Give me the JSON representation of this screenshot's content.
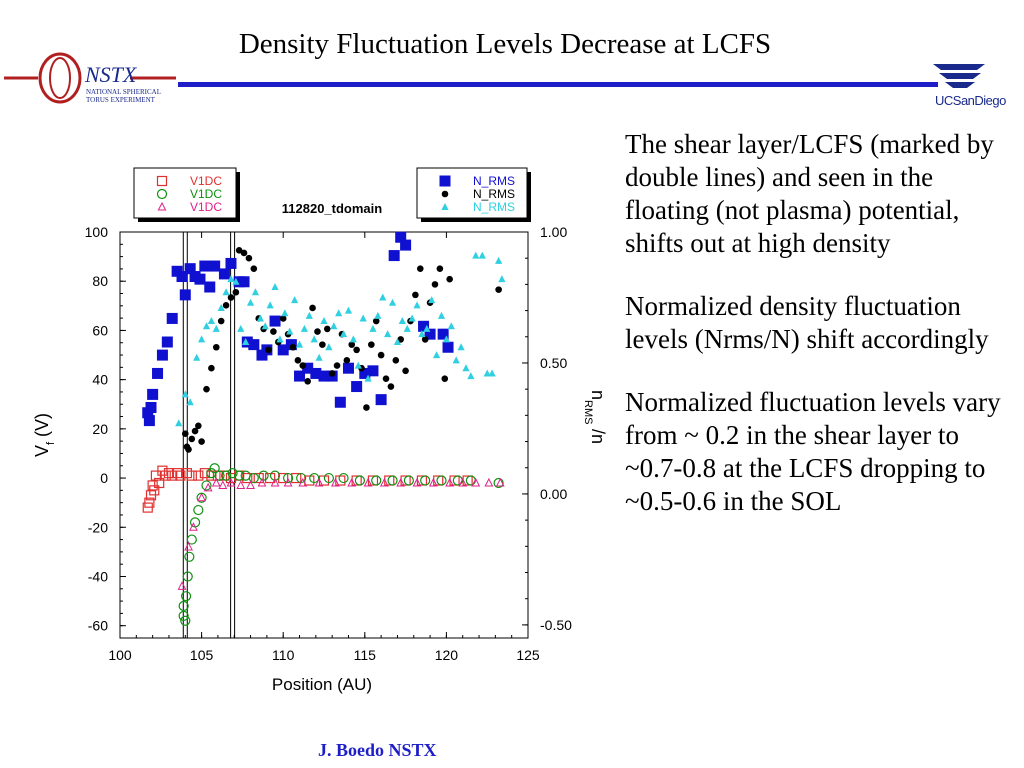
{
  "slide": {
    "title": "Density Fluctuation Levels Decrease at LCFS",
    "footer": "J. Boedo NSTX",
    "logos": {
      "left_text": "NSTX",
      "left_sub": [
        "NATIONAL SPHERICAL",
        "TORUS EXPERIMENT"
      ],
      "right_text": "UCSanDiego"
    },
    "bullets": [
      "The shear layer/LCFS (marked by double lines) and seen in the floating (not plasma) potential, shifts out at high density",
      "Normalized density fluctuation levels (Nrms/N) shift accordingly",
      "Normalized fluctuation levels vary from ~ 0.2 in the shear layer to ~0.7-0.8 at the LCFS dropping to ~0.5-0.6 in the SOL"
    ],
    "colors": {
      "title_rule": "#1e1ec8",
      "footer": "#1e1ec8",
      "nstx_red": "#b02020"
    }
  },
  "chart_data": {
    "type": "scatter",
    "title": "112820_tdomain",
    "xlabel": "Position (AU)",
    "ylabel": "V",
    "ylabel_sub": "f",
    "ylabel_unit": "(V)",
    "y2label": "n",
    "y2label_sub": "RMS",
    "y2label_tail": "/n",
    "xlim": [
      100,
      125
    ],
    "ylim": [
      -65,
      100
    ],
    "y2lim": [
      -0.55,
      1.0
    ],
    "x_ticks": [
      100,
      105,
      110,
      115,
      120,
      125
    ],
    "y_ticks": [
      100,
      80,
      60,
      40,
      20,
      0,
      -20,
      -40,
      -60
    ],
    "y_tick_labels": [
      "100",
      "80",
      "60",
      "40",
      "20",
      "0",
      "-20",
      "-40",
      "-60"
    ],
    "y2_ticks": [
      1.0,
      0.5,
      0.0,
      -0.5
    ],
    "y2_tick_labels": [
      "1.00",
      "0.50",
      "0.00",
      "-0.50"
    ],
    "lcfs_lines": [
      104.0,
      106.9
    ],
    "legend_left": [
      {
        "label": "V1DC",
        "marker": "open-square",
        "color": "#e03030"
      },
      {
        "label": "V1DC",
        "marker": "open-circle",
        "color": "#109010"
      },
      {
        "label": "V1DC",
        "marker": "open-triangle",
        "color": "#e0208a"
      }
    ],
    "legend_right": [
      {
        "label": "N_RMS",
        "marker": "filled-square",
        "color": "#1010d0"
      },
      {
        "label": "N_RMS",
        "marker": "filled-circle",
        "color": "#000000"
      },
      {
        "label": "N_RMS",
        "marker": "filled-triangle",
        "color": "#30d0e0"
      }
    ],
    "series": [
      {
        "name": "V1DC",
        "marker": "open-square",
        "color": "#e03030",
        "axis": "left",
        "points": [
          [
            101.7,
            -12
          ],
          [
            101.8,
            -10
          ],
          [
            101.9,
            -7
          ],
          [
            102.0,
            -3
          ],
          [
            102.1,
            -5
          ],
          [
            102.2,
            1
          ],
          [
            102.4,
            -2
          ],
          [
            102.6,
            3
          ],
          [
            102.8,
            1
          ],
          [
            103.0,
            2
          ],
          [
            103.2,
            1
          ],
          [
            103.5,
            2
          ],
          [
            103.7,
            1
          ],
          [
            104.1,
            2
          ],
          [
            104.4,
            1
          ],
          [
            104.8,
            1
          ],
          [
            105.2,
            2
          ],
          [
            105.6,
            1
          ],
          [
            106.0,
            1
          ],
          [
            106.4,
            1
          ],
          [
            106.8,
            0
          ],
          [
            107.3,
            1
          ],
          [
            107.8,
            0
          ],
          [
            108.5,
            0
          ],
          [
            109.2,
            0
          ],
          [
            110.0,
            0
          ],
          [
            110.8,
            0
          ],
          [
            111.6,
            -1
          ],
          [
            112.5,
            -1
          ],
          [
            113.5,
            -1
          ],
          [
            114.5,
            -1
          ],
          [
            115.5,
            -1
          ],
          [
            116.5,
            -1
          ],
          [
            117.5,
            -1
          ],
          [
            118.5,
            -1
          ],
          [
            119.5,
            -1
          ],
          [
            120.5,
            -1
          ],
          [
            121.3,
            -1
          ]
        ]
      },
      {
        "name": "V1DC",
        "marker": "open-circle",
        "color": "#109010",
        "axis": "left",
        "points": [
          [
            103.9,
            -52
          ],
          [
            103.9,
            -56
          ],
          [
            104.0,
            -58
          ],
          [
            104.05,
            -48
          ],
          [
            104.15,
            -40
          ],
          [
            104.25,
            -32
          ],
          [
            104.4,
            -25
          ],
          [
            104.6,
            -18
          ],
          [
            104.8,
            -13
          ],
          [
            105.0,
            -8
          ],
          [
            105.3,
            -3
          ],
          [
            105.6,
            2
          ],
          [
            105.8,
            4
          ],
          [
            106.1,
            1
          ],
          [
            106.5,
            1
          ],
          [
            106.9,
            2
          ],
          [
            107.3,
            1
          ],
          [
            107.7,
            1
          ],
          [
            108.2,
            0
          ],
          [
            108.8,
            1
          ],
          [
            109.5,
            1
          ],
          [
            110.3,
            0
          ],
          [
            111.1,
            0
          ],
          [
            111.9,
            0
          ],
          [
            112.8,
            0
          ],
          [
            113.7,
            0
          ],
          [
            114.7,
            -1
          ],
          [
            115.7,
            -1
          ],
          [
            116.7,
            -1
          ],
          [
            117.7,
            -1
          ],
          [
            118.7,
            -1
          ],
          [
            119.7,
            -1
          ],
          [
            120.7,
            -1
          ],
          [
            121.5,
            -1
          ],
          [
            123.2,
            -2
          ]
        ]
      },
      {
        "name": "V1DC",
        "marker": "open-triangle",
        "color": "#e0208a",
        "axis": "left",
        "points": [
          [
            103.8,
            -44
          ],
          [
            104.2,
            -28
          ],
          [
            104.5,
            -20
          ],
          [
            105.0,
            -8
          ],
          [
            105.4,
            -4
          ],
          [
            105.9,
            -2
          ],
          [
            106.3,
            -3
          ],
          [
            106.8,
            -2
          ],
          [
            107.4,
            -3
          ],
          [
            108.0,
            -3
          ],
          [
            108.7,
            -2
          ],
          [
            109.5,
            -2
          ],
          [
            110.3,
            -2
          ],
          [
            111.2,
            -2
          ],
          [
            112.2,
            -2
          ],
          [
            113.2,
            -2
          ],
          [
            114.2,
            -2
          ],
          [
            115.2,
            -2
          ],
          [
            116.2,
            -2
          ],
          [
            117.2,
            -2
          ],
          [
            118.2,
            -2
          ],
          [
            119.2,
            -2
          ],
          [
            120.2,
            -2
          ],
          [
            121.0,
            -2
          ],
          [
            121.8,
            -2
          ],
          [
            122.6,
            -2
          ],
          [
            123.3,
            -2
          ]
        ]
      },
      {
        "name": "N_RMS",
        "marker": "filled-square",
        "color": "#1010d0",
        "axis": "right",
        "points": [
          [
            101.7,
            0.31
          ],
          [
            101.8,
            0.28
          ],
          [
            101.9,
            0.33
          ],
          [
            102.0,
            0.38
          ],
          [
            102.3,
            0.46
          ],
          [
            102.6,
            0.53
          ],
          [
            102.9,
            0.58
          ],
          [
            103.2,
            0.67
          ],
          [
            103.5,
            0.85
          ],
          [
            103.8,
            0.83
          ],
          [
            104.0,
            0.76
          ],
          [
            104.3,
            0.86
          ],
          [
            104.6,
            0.83
          ],
          [
            104.9,
            0.82
          ],
          [
            105.2,
            0.87
          ],
          [
            105.5,
            0.79
          ],
          [
            105.8,
            0.87
          ],
          [
            106.4,
            0.84
          ],
          [
            106.8,
            0.88
          ],
          [
            107.3,
            0.81
          ],
          [
            107.6,
            0.81
          ],
          [
            107.8,
            0.58
          ],
          [
            108.2,
            0.57
          ],
          [
            108.7,
            0.53
          ],
          [
            109.0,
            0.55
          ],
          [
            109.5,
            0.66
          ],
          [
            110.0,
            0.55
          ],
          [
            110.5,
            0.57
          ],
          [
            111.0,
            0.45
          ],
          [
            111.5,
            0.48
          ],
          [
            112.0,
            0.46
          ],
          [
            112.5,
            0.45
          ],
          [
            113.0,
            0.45
          ],
          [
            113.5,
            0.35
          ],
          [
            114.0,
            0.48
          ],
          [
            114.5,
            0.41
          ],
          [
            115.0,
            0.46
          ],
          [
            115.5,
            0.47
          ],
          [
            116.0,
            0.36
          ],
          [
            116.8,
            0.91
          ],
          [
            117.2,
            0.98
          ],
          [
            117.5,
            0.95
          ],
          [
            118.6,
            0.64
          ],
          [
            119.0,
            0.61
          ],
          [
            119.8,
            0.61
          ],
          [
            120.1,
            0.56
          ]
        ]
      },
      {
        "name": "N_RMS",
        "marker": "filled-circle",
        "color": "#000000",
        "axis": "right",
        "points": [
          [
            104.0,
            0.23
          ],
          [
            104.1,
            0.18
          ],
          [
            104.2,
            0.17
          ],
          [
            104.4,
            0.21
          ],
          [
            104.6,
            0.24
          ],
          [
            104.8,
            0.26
          ],
          [
            105.0,
            0.2
          ],
          [
            105.3,
            0.4
          ],
          [
            105.6,
            0.48
          ],
          [
            105.9,
            0.56
          ],
          [
            106.2,
            0.66
          ],
          [
            106.5,
            0.72
          ],
          [
            106.8,
            0.75
          ],
          [
            107.1,
            0.77
          ],
          [
            107.3,
            0.93
          ],
          [
            107.6,
            0.92
          ],
          [
            107.9,
            0.9
          ],
          [
            108.2,
            0.86
          ],
          [
            108.5,
            0.67
          ],
          [
            108.8,
            0.63
          ],
          [
            109.1,
            0.55
          ],
          [
            109.4,
            0.62
          ],
          [
            109.7,
            0.58
          ],
          [
            110.0,
            0.67
          ],
          [
            110.3,
            0.61
          ],
          [
            110.6,
            0.56
          ],
          [
            110.9,
            0.51
          ],
          [
            111.2,
            0.49
          ],
          [
            111.5,
            0.43
          ],
          [
            111.8,
            0.71
          ],
          [
            112.1,
            0.62
          ],
          [
            112.4,
            0.57
          ],
          [
            112.7,
            0.63
          ],
          [
            113.0,
            0.46
          ],
          [
            113.3,
            0.49
          ],
          [
            113.6,
            0.61
          ],
          [
            113.9,
            0.51
          ],
          [
            114.2,
            0.57
          ],
          [
            114.5,
            0.55
          ],
          [
            114.8,
            0.48
          ],
          [
            115.1,
            0.33
          ],
          [
            115.4,
            0.57
          ],
          [
            115.7,
            0.66
          ],
          [
            116.0,
            0.53
          ],
          [
            116.3,
            0.44
          ],
          [
            116.6,
            0.41
          ],
          [
            116.9,
            0.51
          ],
          [
            117.2,
            0.59
          ],
          [
            117.5,
            0.47
          ],
          [
            117.8,
            0.66
          ],
          [
            118.1,
            0.76
          ],
          [
            118.4,
            0.86
          ],
          [
            118.7,
            0.59
          ],
          [
            119.0,
            0.73
          ],
          [
            119.3,
            0.8
          ],
          [
            119.6,
            0.86
          ],
          [
            119.9,
            0.44
          ],
          [
            120.2,
            0.82
          ],
          [
            123.2,
            0.78
          ]
        ]
      },
      {
        "name": "N_RMS",
        "marker": "filled-triangle",
        "color": "#30d0e0",
        "axis": "right",
        "points": [
          [
            103.6,
            0.27
          ],
          [
            104.0,
            0.38
          ],
          [
            104.3,
            0.35
          ],
          [
            104.7,
            0.52
          ],
          [
            105.0,
            0.59
          ],
          [
            105.3,
            0.64
          ],
          [
            105.6,
            0.66
          ],
          [
            105.9,
            0.63
          ],
          [
            106.2,
            0.71
          ],
          [
            106.5,
            0.77
          ],
          [
            106.8,
            0.82
          ],
          [
            107.1,
            0.81
          ],
          [
            107.4,
            0.63
          ],
          [
            107.7,
            0.58
          ],
          [
            108.0,
            0.73
          ],
          [
            108.3,
            0.77
          ],
          [
            108.6,
            0.67
          ],
          [
            108.9,
            0.64
          ],
          [
            109.2,
            0.72
          ],
          [
            109.5,
            0.79
          ],
          [
            109.8,
            0.59
          ],
          [
            110.1,
            0.69
          ],
          [
            110.4,
            0.62
          ],
          [
            110.7,
            0.74
          ],
          [
            111.0,
            0.57
          ],
          [
            111.3,
            0.63
          ],
          [
            111.6,
            0.68
          ],
          [
            111.9,
            0.59
          ],
          [
            112.2,
            0.52
          ],
          [
            112.5,
            0.66
          ],
          [
            112.8,
            0.56
          ],
          [
            113.1,
            0.64
          ],
          [
            113.4,
            0.69
          ],
          [
            113.7,
            0.61
          ],
          [
            114.0,
            0.7
          ],
          [
            114.3,
            0.59
          ],
          [
            114.6,
            0.49
          ],
          [
            114.9,
            0.67
          ],
          [
            115.2,
            0.44
          ],
          [
            115.5,
            0.63
          ],
          [
            115.8,
            0.68
          ],
          [
            116.1,
            0.75
          ],
          [
            116.4,
            0.61
          ],
          [
            116.7,
            0.73
          ],
          [
            117.0,
            0.58
          ],
          [
            117.3,
            0.66
          ],
          [
            117.6,
            0.63
          ],
          [
            117.9,
            0.67
          ],
          [
            118.2,
            0.72
          ],
          [
            118.5,
            0.61
          ],
          [
            118.8,
            0.63
          ],
          [
            119.1,
            0.74
          ],
          [
            119.4,
            0.53
          ],
          [
            119.7,
            0.68
          ],
          [
            120.0,
            0.59
          ],
          [
            120.3,
            0.64
          ],
          [
            120.6,
            0.51
          ],
          [
            120.9,
            0.56
          ],
          [
            121.2,
            0.48
          ],
          [
            121.5,
            0.45
          ],
          [
            121.8,
            0.91
          ],
          [
            122.2,
            0.91
          ],
          [
            122.5,
            0.46
          ],
          [
            122.8,
            0.46
          ],
          [
            123.2,
            0.89
          ],
          [
            123.4,
            0.82
          ]
        ]
      }
    ]
  }
}
